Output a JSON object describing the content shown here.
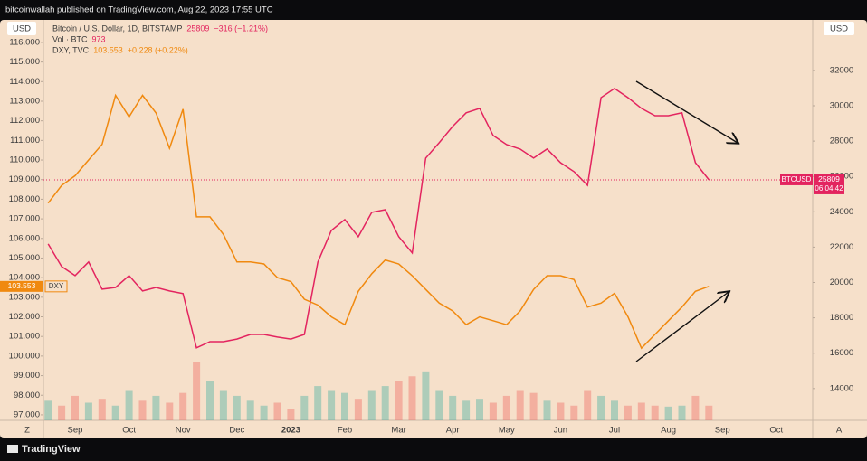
{
  "header": "bitcoinwallah published on TradingView.com, Aug 22, 2023 17:55 UTC",
  "currency_left": "USD",
  "currency_right": "USD",
  "corner_left": "Z",
  "corner_right": "A",
  "footer": "TradingView",
  "chart_data": {
    "type": "line",
    "categories": [
      null,
      null,
      "Sep",
      null,
      null,
      null,
      "Oct",
      null,
      null,
      null,
      "Nov",
      null,
      null,
      null,
      "Dec",
      null,
      null,
      null,
      "2023",
      null,
      null,
      null,
      "Feb",
      null,
      null,
      null,
      "Mar",
      null,
      null,
      null,
      "Apr",
      null,
      null,
      null,
      "May",
      null,
      null,
      null,
      "Jun",
      null,
      null,
      null,
      "Jul",
      null,
      null,
      null,
      "Aug",
      null,
      null,
      null,
      "Sep",
      null,
      null,
      null,
      "Oct",
      null,
      null
    ],
    "ylim": [
      96.72,
      117.15
    ],
    "yticks": [
      {
        "value": 97,
        "label": "97.000"
      },
      {
        "value": 98,
        "label": "98.000"
      },
      {
        "value": 99,
        "label": "99.000"
      },
      {
        "value": 100,
        "label": "100.000"
      },
      {
        "value": 101,
        "label": "101.000"
      },
      {
        "value": 102,
        "label": "102.000"
      },
      {
        "value": 103,
        "label": "103.000"
      },
      {
        "value": 104,
        "label": "104.000"
      },
      {
        "value": 105,
        "label": "105.000"
      },
      {
        "value": 106,
        "label": "106.000"
      },
      {
        "value": 107,
        "label": "107.000"
      },
      {
        "value": 108,
        "label": "108.000"
      },
      {
        "value": 109,
        "label": "109.000"
      },
      {
        "value": 110,
        "label": "110.000"
      },
      {
        "value": 111,
        "label": "111.000"
      },
      {
        "value": 112,
        "label": "112.000"
      },
      {
        "value": 113,
        "label": "113.000"
      },
      {
        "value": 114,
        "label": "114.000"
      },
      {
        "value": 115,
        "label": "115.000"
      },
      {
        "value": 116,
        "label": "116.000"
      }
    ],
    "y2lim": [
      12200,
      34860
    ],
    "y2ticks": [
      14000,
      16000,
      18000,
      20000,
      22000,
      24000,
      26000,
      28000,
      30000,
      32000
    ],
    "series": [
      {
        "name": "Bitcoin / U.S. Dollar, 1D, BITSTAMP",
        "change": "−316 (−1.21%)",
        "badge": "BTCUSD",
        "countdown": "06:04:42",
        "color": "#e3245f",
        "axis": "y2",
        "values": [
          22180,
          20900,
          20390,
          21160,
          19620,
          19720,
          20390,
          19520,
          19720,
          19520,
          19370,
          16300,
          16650,
          16650,
          16800,
          17060,
          17060,
          16910,
          16800,
          17060,
          21150,
          22940,
          23560,
          22590,
          23970,
          24120,
          22590,
          21670,
          27040,
          27910,
          28830,
          29600,
          29850,
          28320,
          27800,
          27550,
          27040,
          27550,
          26780,
          26270,
          25500,
          30460,
          30980,
          30460,
          29850,
          29440,
          29440,
          29600,
          26780,
          25809,
          null,
          null,
          null,
          null,
          null,
          null,
          null
        ]
      },
      {
        "name": "DXY, TVC",
        "change": "+0.228 (+0.22%)",
        "badge": "DXY",
        "color": "#f0890f",
        "axis": "y",
        "values": [
          107.8,
          108.7,
          109.2,
          110.0,
          110.8,
          113.3,
          112.2,
          113.3,
          112.4,
          110.6,
          112.6,
          107.1,
          107.1,
          106.2,
          104.8,
          104.8,
          104.7,
          104.0,
          103.8,
          102.9,
          102.6,
          102.0,
          101.6,
          103.3,
          104.2,
          104.9,
          104.7,
          104.1,
          103.4,
          102.7,
          102.3,
          101.6,
          102.0,
          101.8,
          101.6,
          102.3,
          103.4,
          104.1,
          104.1,
          103.9,
          102.5,
          102.7,
          103.2,
          102.0,
          100.4,
          101.1,
          101.8,
          102.5,
          103.3,
          103.553,
          null,
          null,
          null,
          null,
          null,
          null,
          null
        ]
      }
    ],
    "volume": {
      "name": "Vol · BTC",
      "up_color": "#26a69a",
      "down_color": "#ef5350",
      "values": [
        1300,
        975,
        1625,
        1170,
        1430,
        975,
        1950,
        1300,
        1625,
        1170,
        1820,
        3900,
        2600,
        1950,
        1625,
        1300,
        975,
        1170,
        780,
        1625,
        2275,
        1950,
        1820,
        1430,
        1950,
        2275,
        2600,
        2925,
        3250,
        1950,
        1625,
        1300,
        1430,
        1170,
        1625,
        1950,
        1820,
        1300,
        1170,
        975,
        1950,
        1625,
        1300,
        975,
        1170,
        975,
        910,
        975,
        1625,
        973,
        null,
        null,
        null,
        null,
        null,
        null,
        null
      ]
    }
  }
}
